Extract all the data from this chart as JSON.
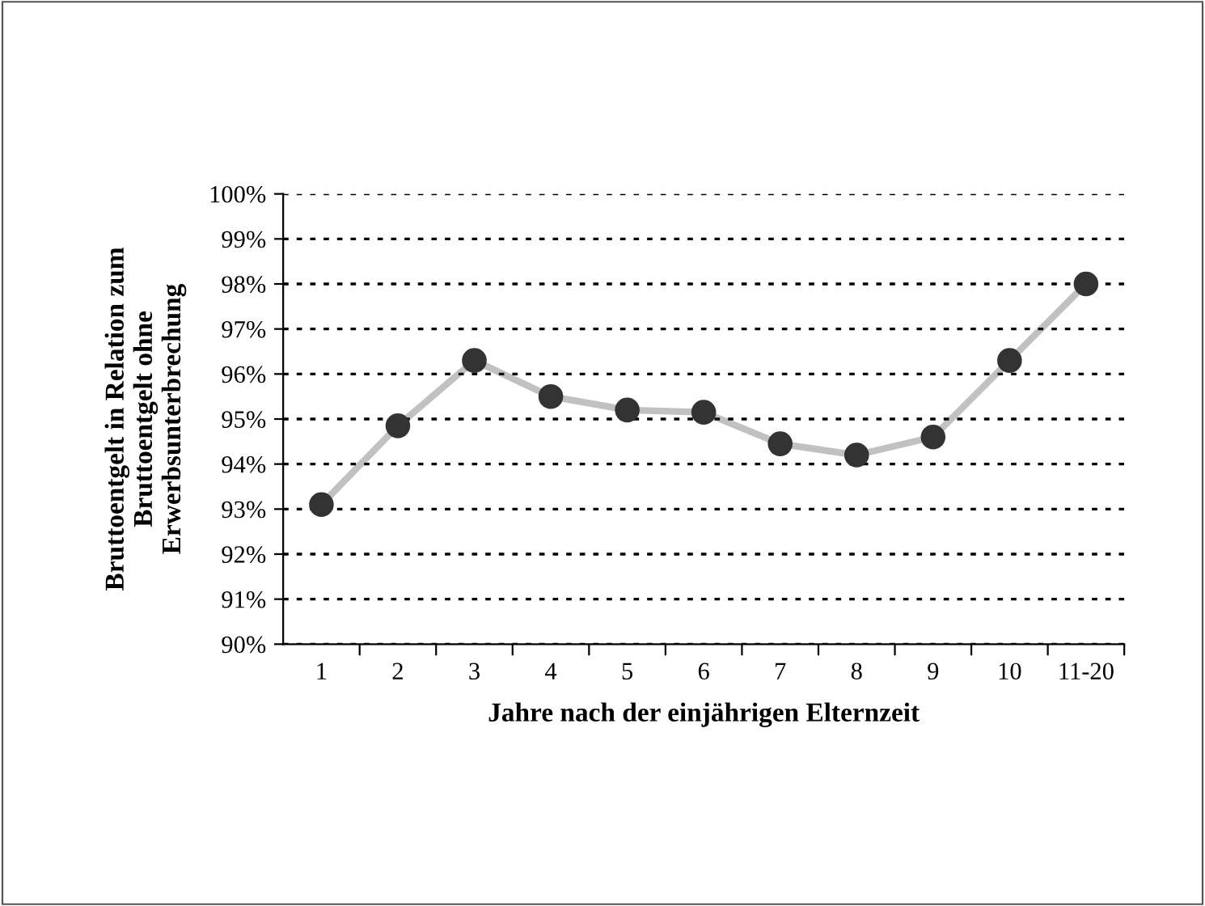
{
  "chart_data": {
    "type": "line",
    "xlabel": "Jahre nach der einjährigen Elternzeit",
    "ylabel": "Bruttoentgelt in Relation zum\nBruttoentgelt ohne\nErwerbsunterbrechung",
    "categories": [
      "1",
      "2",
      "3",
      "4",
      "5",
      "6",
      "7",
      "8",
      "9",
      "10",
      "11-20"
    ],
    "series": [
      {
        "color": "#333333",
        "values": [
          93.1,
          94.85,
          96.3,
          95.5,
          95.2,
          95.15,
          94.45,
          94.2,
          94.6,
          96.3,
          98.0
        ]
      }
    ],
    "marker": "circle",
    "ylim": [
      90,
      100
    ],
    "yticks": [
      {
        "value": 90,
        "label": "90%"
      },
      {
        "value": 91,
        "label": "91%"
      },
      {
        "value": 92,
        "label": "92%"
      },
      {
        "value": 93,
        "label": "93%"
      },
      {
        "value": 94,
        "label": "94%"
      },
      {
        "value": 95,
        "label": "95%"
      },
      {
        "value": 96,
        "label": "96%"
      },
      {
        "value": 97,
        "label": "97%"
      },
      {
        "value": 98,
        "label": "98%"
      },
      {
        "value": 99,
        "label": "99%"
      },
      {
        "value": 100,
        "label": "100%"
      }
    ],
    "grid": "y"
  }
}
